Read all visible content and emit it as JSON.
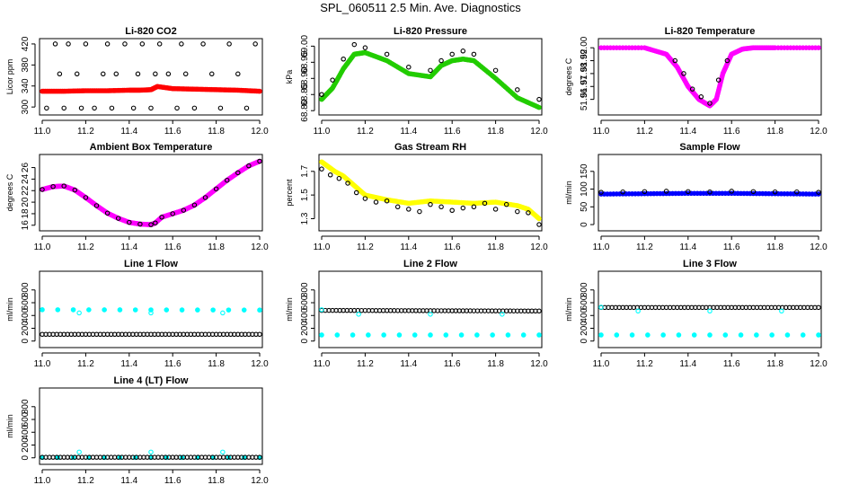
{
  "figure_title": "SPL_060511  2.5 Min. Ave. Diagnostics",
  "colors": {
    "red": "#ff0000",
    "green": "#22cc00",
    "magenta": "#ff00ff",
    "yellow": "#ffff00",
    "blue": "#0000ff",
    "cyan": "#00ffff",
    "black": "#000000"
  },
  "chart_data": [
    {
      "type": "scatter",
      "title": "Li-820 CO2",
      "ylabel": "Licor ppm",
      "xlim": [
        11.0,
        12.0
      ],
      "ylim": [
        290,
        425
      ],
      "xticks": [
        "11.0",
        "11.2",
        "11.4",
        "11.6",
        "11.8",
        "12.0"
      ],
      "yticks": [
        300,
        340,
        380,
        420
      ],
      "series": [
        {
          "name": "co2",
          "color": "red",
          "filled": true,
          "x": [
            11.0,
            11.1,
            11.2,
            11.3,
            11.4,
            11.45,
            11.5,
            11.53,
            11.6,
            11.7,
            11.8,
            11.9,
            12.0
          ],
          "y": [
            330,
            330,
            331,
            331,
            332,
            332,
            333,
            339,
            335,
            334,
            333,
            332,
            330
          ]
        },
        {
          "name": "co2-check",
          "color": "black",
          "filled": false,
          "x": [
            11.02,
            11.06,
            11.08,
            11.1,
            11.12,
            11.16,
            11.18,
            11.2,
            11.24,
            11.28,
            11.3,
            11.32,
            11.34,
            11.38,
            11.42,
            11.44,
            11.46,
            11.5,
            11.52,
            11.54,
            11.58,
            11.62,
            11.64,
            11.66,
            11.7,
            11.74,
            11.78,
            11.82,
            11.86,
            11.9,
            11.94,
            11.98
          ],
          "y": [
            298,
            420,
            363,
            298,
            420,
            363,
            298,
            420,
            298,
            363,
            420,
            298,
            363,
            420,
            298,
            363,
            420,
            298,
            363,
            420,
            363,
            298,
            420,
            363,
            298,
            420,
            363,
            298,
            420,
            363,
            298,
            420
          ]
        }
      ]
    },
    {
      "type": "scatter",
      "title": "Li-820 Pressure",
      "ylabel": "kPa",
      "xlim": [
        11.0,
        12.0
      ],
      "ylim": [
        68.795,
        69.015
      ],
      "xticks": [
        "11.0",
        "11.2",
        "11.4",
        "11.6",
        "11.8",
        "12.0"
      ],
      "yticks": [
        "68.80",
        "68.85",
        "68.90",
        "68.95",
        "69.00"
      ],
      "series": [
        {
          "name": "pressure",
          "color": "green",
          "filled": true,
          "x": [
            11.0,
            11.05,
            11.1,
            11.15,
            11.2,
            11.3,
            11.4,
            11.5,
            11.55,
            11.6,
            11.65,
            11.7,
            11.8,
            11.9,
            12.0
          ],
          "y": [
            68.835,
            68.87,
            68.93,
            68.975,
            68.98,
            68.955,
            68.915,
            68.905,
            68.94,
            68.955,
            68.96,
            68.955,
            68.9,
            68.84,
            68.81
          ]
        },
        {
          "name": "pressure-check",
          "color": "black",
          "filled": false,
          "x": [
            11.0,
            11.05,
            11.1,
            11.15,
            11.2,
            11.3,
            11.4,
            11.5,
            11.55,
            11.6,
            11.65,
            11.7,
            11.8,
            11.9,
            12.0
          ],
          "y": [
            68.85,
            68.895,
            68.96,
            69.005,
            68.995,
            68.975,
            68.935,
            68.925,
            68.955,
            68.975,
            68.985,
            68.975,
            68.925,
            68.865,
            68.835
          ]
        }
      ]
    },
    {
      "type": "scatter",
      "title": "Li-820 Temperature",
      "ylabel": "degrees C",
      "xlim": [
        11.0,
        12.0
      ],
      "ylim": [
        51.95,
        52.005
      ],
      "xticks": [
        "11.0",
        "11.2",
        "11.4",
        "11.6",
        "11.8",
        "12.0"
      ],
      "yticks": [
        "51.96",
        "51.97",
        "51.98",
        "51.99",
        "52.00"
      ],
      "series": [
        {
          "name": "temperature",
          "color": "magenta",
          "filled": true,
          "x": [
            11.0,
            11.2,
            11.3,
            11.35,
            11.4,
            11.45,
            11.5,
            11.53,
            11.56,
            11.6,
            11.65,
            11.7,
            11.8,
            12.0
          ],
          "y": [
            52.0,
            52.0,
            51.995,
            51.985,
            51.97,
            51.96,
            51.955,
            51.96,
            51.98,
            51.995,
            51.999,
            52.0,
            52.0,
            52.0
          ]
        },
        {
          "name": "temperature-check",
          "color": "black",
          "filled": false,
          "x": [
            11.34,
            11.38,
            11.42,
            11.46,
            11.5,
            11.54,
            11.58
          ],
          "y": [
            51.99,
            51.98,
            51.968,
            51.962,
            51.957,
            51.975,
            51.99
          ]
        }
      ]
    },
    {
      "type": "scatter",
      "title": "Ambient Box Temperature",
      "ylabel": "degrees C",
      "xlim": [
        11.0,
        12.0
      ],
      "ylim": [
        15.5,
        27.8
      ],
      "xticks": [
        "11.0",
        "11.2",
        "11.4",
        "11.6",
        "11.8",
        "12.0"
      ],
      "yticks": [
        16,
        18,
        20,
        22,
        24,
        26
      ],
      "series": [
        {
          "name": "box-temp",
          "color": "magenta",
          "filled": true,
          "x": [
            11.0,
            11.05,
            11.1,
            11.15,
            11.2,
            11.25,
            11.3,
            11.35,
            11.4,
            11.45,
            11.5,
            11.52,
            11.55,
            11.6,
            11.65,
            11.7,
            11.75,
            11.8,
            11.85,
            11.9,
            11.95,
            12.0
          ],
          "y": [
            22.2,
            22.7,
            22.8,
            22.1,
            20.8,
            19.4,
            18.1,
            17.2,
            16.5,
            16.2,
            16.1,
            16.4,
            17.4,
            18.0,
            18.6,
            19.5,
            20.8,
            22.3,
            23.8,
            25.1,
            26.3,
            27.1
          ]
        },
        {
          "name": "box-temp-check",
          "color": "black",
          "filled": false,
          "x": [
            11.0,
            11.05,
            11.1,
            11.15,
            11.2,
            11.25,
            11.3,
            11.35,
            11.4,
            11.45,
            11.5,
            11.52,
            11.55,
            11.6,
            11.65,
            11.7,
            11.75,
            11.8,
            11.85,
            11.9,
            11.95,
            12.0
          ],
          "y": [
            22.2,
            22.7,
            22.8,
            22.1,
            20.8,
            19.4,
            18.1,
            17.2,
            16.5,
            16.2,
            16.1,
            16.4,
            17.4,
            18.0,
            18.6,
            19.5,
            20.8,
            22.3,
            23.8,
            25.1,
            26.3,
            27.1
          ]
        }
      ]
    },
    {
      "type": "scatter",
      "title": "Gas Stream RH",
      "ylabel": "percent",
      "xlim": [
        11.0,
        12.0
      ],
      "ylim": [
        1.22,
        1.82
      ],
      "xticks": [
        "11.0",
        "11.2",
        "11.4",
        "11.6",
        "11.8",
        "12.0"
      ],
      "yticks": [
        1.3,
        1.5,
        1.7
      ],
      "series": [
        {
          "name": "rh",
          "color": "yellow",
          "filled": true,
          "x": [
            11.0,
            11.03,
            11.06,
            11.1,
            11.15,
            11.2,
            11.3,
            11.4,
            11.5,
            11.6,
            11.7,
            11.8,
            11.9,
            11.95,
            12.0
          ],
          "y": [
            1.78,
            1.74,
            1.7,
            1.66,
            1.58,
            1.5,
            1.46,
            1.43,
            1.45,
            1.44,
            1.43,
            1.44,
            1.41,
            1.38,
            1.3
          ]
        },
        {
          "name": "rh-check",
          "color": "black",
          "filled": false,
          "x": [
            11.0,
            11.04,
            11.08,
            11.12,
            11.16,
            11.2,
            11.25,
            11.3,
            11.35,
            11.4,
            11.45,
            11.5,
            11.55,
            11.6,
            11.65,
            11.7,
            11.75,
            11.8,
            11.85,
            11.9,
            11.95,
            12.0
          ],
          "y": [
            1.72,
            1.67,
            1.64,
            1.6,
            1.52,
            1.47,
            1.44,
            1.45,
            1.4,
            1.38,
            1.36,
            1.42,
            1.4,
            1.37,
            1.39,
            1.4,
            1.43,
            1.38,
            1.42,
            1.36,
            1.35,
            1.25
          ]
        }
      ]
    },
    {
      "type": "scatter",
      "title": "Sample Flow",
      "ylabel": "ml/min",
      "xlim": [
        11.0,
        12.0
      ],
      "ylim": [
        -10,
        190
      ],
      "xticks": [
        "11.0",
        "11.2",
        "11.4",
        "11.6",
        "11.8",
        "12.0"
      ],
      "yticks": [
        0,
        50,
        100,
        150
      ],
      "series": [
        {
          "name": "sample-flow",
          "color": "blue",
          "filled": true,
          "x": [
            11.0,
            11.2,
            11.4,
            11.6,
            11.8,
            12.0
          ],
          "y": [
            86,
            87,
            88,
            88,
            87,
            86
          ]
        },
        {
          "name": "sample-flow-check",
          "color": "black",
          "filled": false,
          "x": [
            11.0,
            11.1,
            11.2,
            11.3,
            11.4,
            11.5,
            11.6,
            11.7,
            11.8,
            11.9,
            12.0
          ],
          "y": [
            91,
            92,
            93,
            94,
            93,
            92,
            94,
            93,
            92,
            92,
            91
          ]
        }
      ]
    },
    {
      "type": "scatter",
      "title": "Line 1 Flow",
      "ylabel": "ml/min",
      "xlim": [
        11.0,
        12.0
      ],
      "ylim": [
        -60,
        1050
      ],
      "xticks": [
        "11.0",
        "11.2",
        "11.4",
        "11.6",
        "11.8",
        "12.0"
      ],
      "yticks": [
        0,
        200,
        400,
        600,
        800
      ],
      "series": [
        {
          "name": "line1-cyan",
          "color": "cyan",
          "filled": true,
          "x": [
            11.0,
            12.0
          ],
          "y": [
            490,
            485
          ]
        },
        {
          "name": "line1-cyan-dips",
          "color": "cyan",
          "filled": false,
          "x": [
            11.17,
            11.5,
            11.83
          ],
          "y": [
            440,
            440,
            440
          ]
        },
        {
          "name": "line1-black",
          "color": "black",
          "filled": false,
          "x": [
            11.0,
            12.0
          ],
          "y": [
            105,
            105
          ]
        }
      ]
    },
    {
      "type": "scatter",
      "title": "Line 2 Flow",
      "ylabel": "ml/min",
      "xlim": [
        11.0,
        12.0
      ],
      "ylim": [
        -60,
        1050
      ],
      "xticks": [
        "11.0",
        "11.2",
        "11.4",
        "11.6",
        "11.8",
        "12.0"
      ],
      "yticks": [
        0,
        200,
        400,
        600,
        800
      ],
      "series": [
        {
          "name": "line2-black",
          "color": "black",
          "filled": false,
          "x": [
            11.0,
            12.0
          ],
          "y": [
            480,
            470
          ]
        },
        {
          "name": "line2-cyan",
          "color": "cyan",
          "filled": true,
          "x": [
            11.0,
            12.0
          ],
          "y": [
            95,
            95
          ]
        },
        {
          "name": "line2-cyan-dips",
          "color": "cyan",
          "filled": false,
          "x": [
            11.0,
            11.17,
            11.5,
            11.83
          ],
          "y": [
            490,
            420,
            420,
            420
          ]
        }
      ]
    },
    {
      "type": "scatter",
      "title": "Line 3 Flow",
      "ylabel": "ml/min",
      "xlim": [
        11.0,
        12.0
      ],
      "ylim": [
        -60,
        1050
      ],
      "xticks": [
        "11.0",
        "11.2",
        "11.4",
        "11.6",
        "11.8",
        "12.0"
      ],
      "yticks": [
        0,
        200,
        400,
        600,
        800
      ],
      "series": [
        {
          "name": "line3-black",
          "color": "black",
          "filled": false,
          "x": [
            11.0,
            12.0
          ],
          "y": [
            525,
            525
          ]
        },
        {
          "name": "line3-cyan",
          "color": "cyan",
          "filled": true,
          "x": [
            11.0,
            12.0
          ],
          "y": [
            95,
            95
          ]
        },
        {
          "name": "line3-cyan-dips",
          "color": "cyan",
          "filled": false,
          "x": [
            11.0,
            11.17,
            11.5,
            11.83
          ],
          "y": [
            530,
            470,
            470,
            470
          ]
        }
      ]
    },
    {
      "type": "scatter",
      "title": "Line 4 (LT) Flow",
      "ylabel": "ml/min",
      "xlim": [
        11.0,
        12.0
      ],
      "ylim": [
        -60,
        1050
      ],
      "xticks": [
        "11.0",
        "11.2",
        "11.4",
        "11.6",
        "11.8",
        "12.0"
      ],
      "yticks": [
        0,
        200,
        400,
        600,
        800
      ],
      "series": [
        {
          "name": "line4-cyan",
          "color": "cyan",
          "filled": true,
          "x": [
            11.0,
            12.0
          ],
          "y": [
            5,
            5
          ]
        },
        {
          "name": "line4-cyan-spikes",
          "color": "cyan",
          "filled": false,
          "x": [
            11.17,
            11.5,
            11.83
          ],
          "y": [
            90,
            90,
            90
          ]
        },
        {
          "name": "line4-black",
          "color": "black",
          "filled": false,
          "x": [
            11.0,
            12.0
          ],
          "y": [
            8,
            8
          ]
        }
      ]
    }
  ]
}
